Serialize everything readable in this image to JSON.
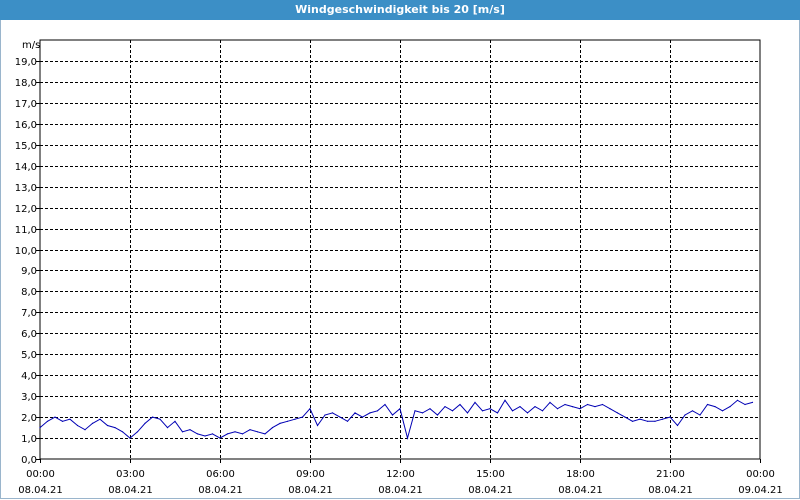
{
  "window": {
    "title": "Windgeschwindigkeit bis 20 [m/s]"
  },
  "chart_data": {
    "type": "line",
    "title": "Windgeschwindigkeit bis 20 [m/s]",
    "ylabel": "m/s",
    "xlabel": "",
    "ylim": [
      0,
      20
    ],
    "xlim_hours": [
      0,
      24
    ],
    "grid": true,
    "y_ticks": [
      "0,0",
      "1,0",
      "2,0",
      "3,0",
      "4,0",
      "5,0",
      "6,0",
      "7,0",
      "8,0",
      "9,0",
      "10,0",
      "11,0",
      "12,0",
      "13,0",
      "14,0",
      "15,0",
      "16,0",
      "17,0",
      "18,0",
      "19,0"
    ],
    "x_ticks": [
      {
        "time": "00:00",
        "date": "08.04.21"
      },
      {
        "time": "03:00",
        "date": "08.04.21"
      },
      {
        "time": "06:00",
        "date": "08.04.21"
      },
      {
        "time": "09:00",
        "date": "08.04.21"
      },
      {
        "time": "12:00",
        "date": "08.04.21"
      },
      {
        "time": "15:00",
        "date": "08.04.21"
      },
      {
        "time": "18:00",
        "date": "08.04.21"
      },
      {
        "time": "21:00",
        "date": "08.04.21"
      },
      {
        "time": "00:00",
        "date": "09.04.21"
      }
    ],
    "series": [
      {
        "color": "#0000b4",
        "x_hours": [
          0,
          0.25,
          0.5,
          0.75,
          1,
          1.25,
          1.5,
          1.75,
          2,
          2.25,
          2.5,
          2.75,
          3,
          3.25,
          3.5,
          3.75,
          4,
          4.25,
          4.5,
          4.75,
          5,
          5.25,
          5.5,
          5.75,
          6,
          6.25,
          6.5,
          6.75,
          7,
          7.25,
          7.5,
          7.75,
          8,
          8.25,
          8.5,
          8.75,
          9,
          9.25,
          9.5,
          9.75,
          10,
          10.25,
          10.5,
          10.75,
          11,
          11.25,
          11.5,
          11.75,
          12,
          12.25,
          12.5,
          12.75,
          13,
          13.25,
          13.5,
          13.75,
          14,
          14.25,
          14.5,
          14.75,
          15,
          15.25,
          15.5,
          15.75,
          16,
          16.25,
          16.5,
          16.75,
          17,
          17.25,
          17.5,
          17.75,
          18,
          18.25,
          18.5,
          18.75,
          19,
          19.25,
          19.5,
          19.75,
          20,
          20.25,
          20.5,
          20.75,
          21,
          21.25,
          21.5,
          21.75,
          22,
          22.25,
          22.5,
          22.75,
          23,
          23.25,
          23.5,
          23.75
        ],
        "values": [
          1.5,
          1.8,
          2.0,
          1.8,
          1.9,
          1.6,
          1.4,
          1.7,
          1.9,
          1.6,
          1.5,
          1.3,
          1.0,
          1.3,
          1.7,
          2.0,
          1.9,
          1.5,
          1.8,
          1.3,
          1.4,
          1.2,
          1.1,
          1.2,
          1.0,
          1.2,
          1.3,
          1.2,
          1.4,
          1.3,
          1.2,
          1.5,
          1.7,
          1.8,
          1.9,
          2.0,
          2.4,
          1.6,
          2.1,
          2.2,
          2.0,
          1.8,
          2.2,
          2.0,
          2.2,
          2.3,
          2.6,
          2.1,
          2.4,
          1.0,
          2.3,
          2.2,
          2.4,
          2.1,
          2.5,
          2.3,
          2.6,
          2.2,
          2.7,
          2.3,
          2.4,
          2.2,
          2.8,
          2.3,
          2.5,
          2.2,
          2.5,
          2.3,
          2.7,
          2.4,
          2.6,
          2.5,
          2.4,
          2.6,
          2.5,
          2.6,
          2.4,
          2.2,
          2.0,
          1.8,
          1.9,
          1.8,
          1.8,
          1.9,
          2.0,
          1.6,
          2.1,
          2.3,
          2.1,
          2.6,
          2.5,
          2.3,
          2.5,
          2.8,
          2.6,
          2.7
        ]
      }
    ]
  }
}
